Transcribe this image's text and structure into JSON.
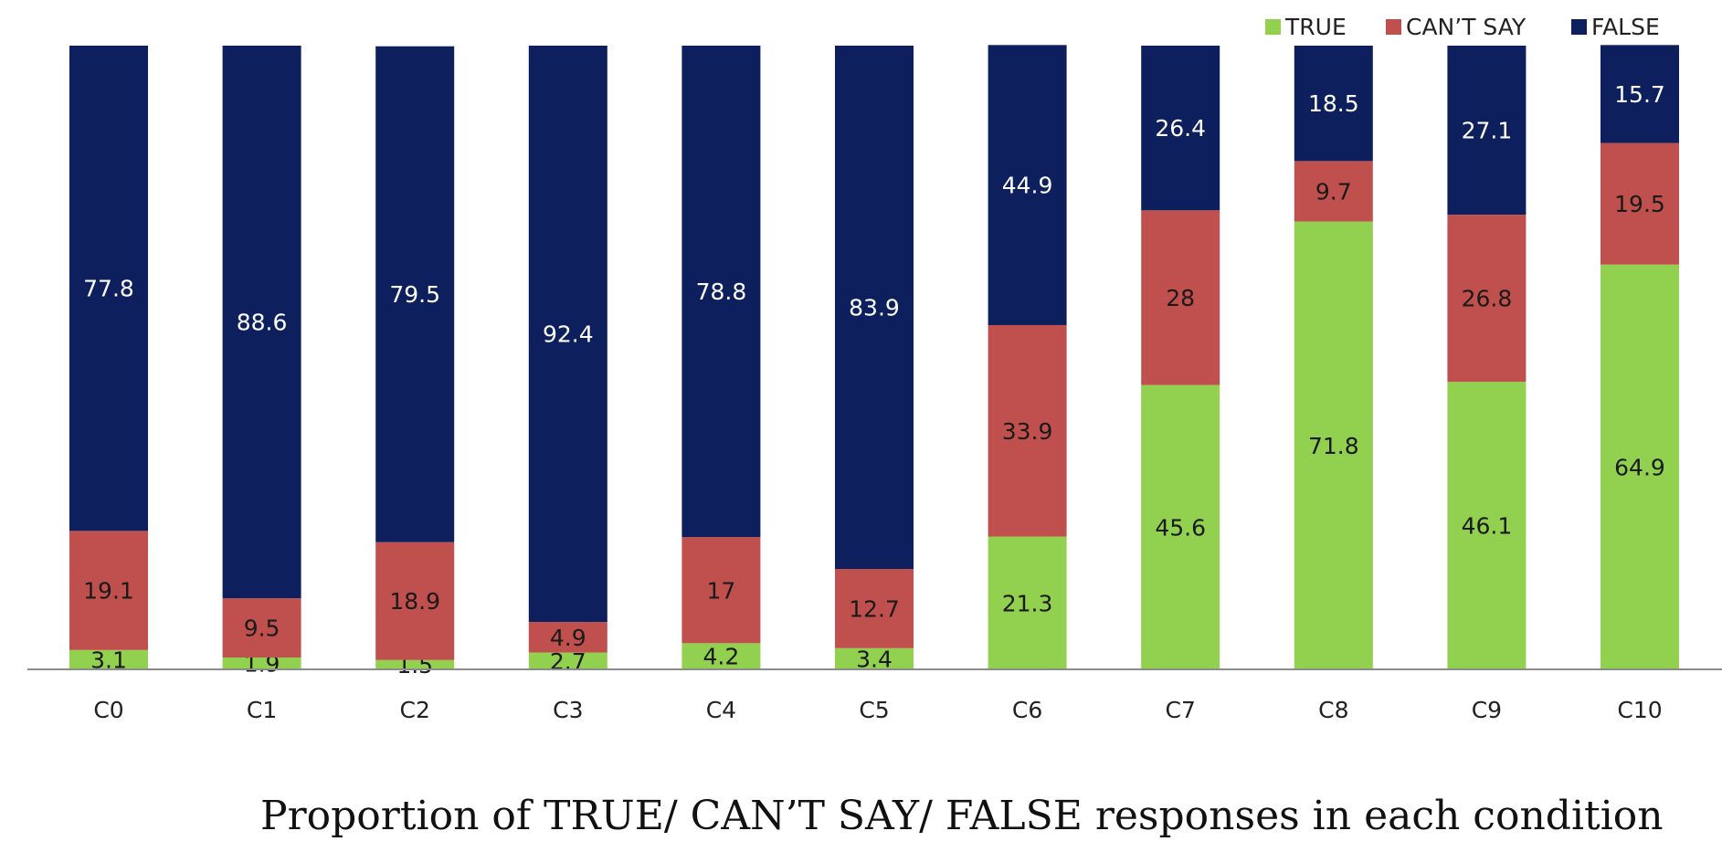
{
  "caption": "Proportion of TRUE/ CAN’T SAY/ FALSE responses in each condition",
  "colors": {
    "TRUE": "#92d050",
    "CAN'T SAY": "#c0504d",
    "FALSE": "#0d1f5c"
  },
  "chart_data": {
    "type": "bar",
    "stacked": true,
    "categories": [
      "C0",
      "C1",
      "C2",
      "C3",
      "C4",
      "C5",
      "C6",
      "C7",
      "C8",
      "C9",
      "C10"
    ],
    "series": [
      {
        "name": "TRUE",
        "values": [
          3.1,
          1.9,
          1.5,
          2.7,
          4.2,
          3.4,
          21.3,
          45.6,
          71.8,
          46.1,
          64.9
        ]
      },
      {
        "name": "CAN’T SAY",
        "values": [
          19.1,
          9.5,
          18.9,
          4.9,
          17,
          12.7,
          33.9,
          28,
          9.7,
          26.8,
          19.5
        ]
      },
      {
        "name": "FALSE",
        "values": [
          77.8,
          88.6,
          79.5,
          92.4,
          78.8,
          83.9,
          44.9,
          26.4,
          18.5,
          27.1,
          15.7
        ]
      }
    ],
    "legend": [
      "TRUE",
      "CAN’T SAY",
      "FALSE"
    ],
    "legend_position": "top-right",
    "ylim": [
      0,
      100
    ],
    "grid": false,
    "title": "",
    "xlabel": "",
    "ylabel": ""
  }
}
